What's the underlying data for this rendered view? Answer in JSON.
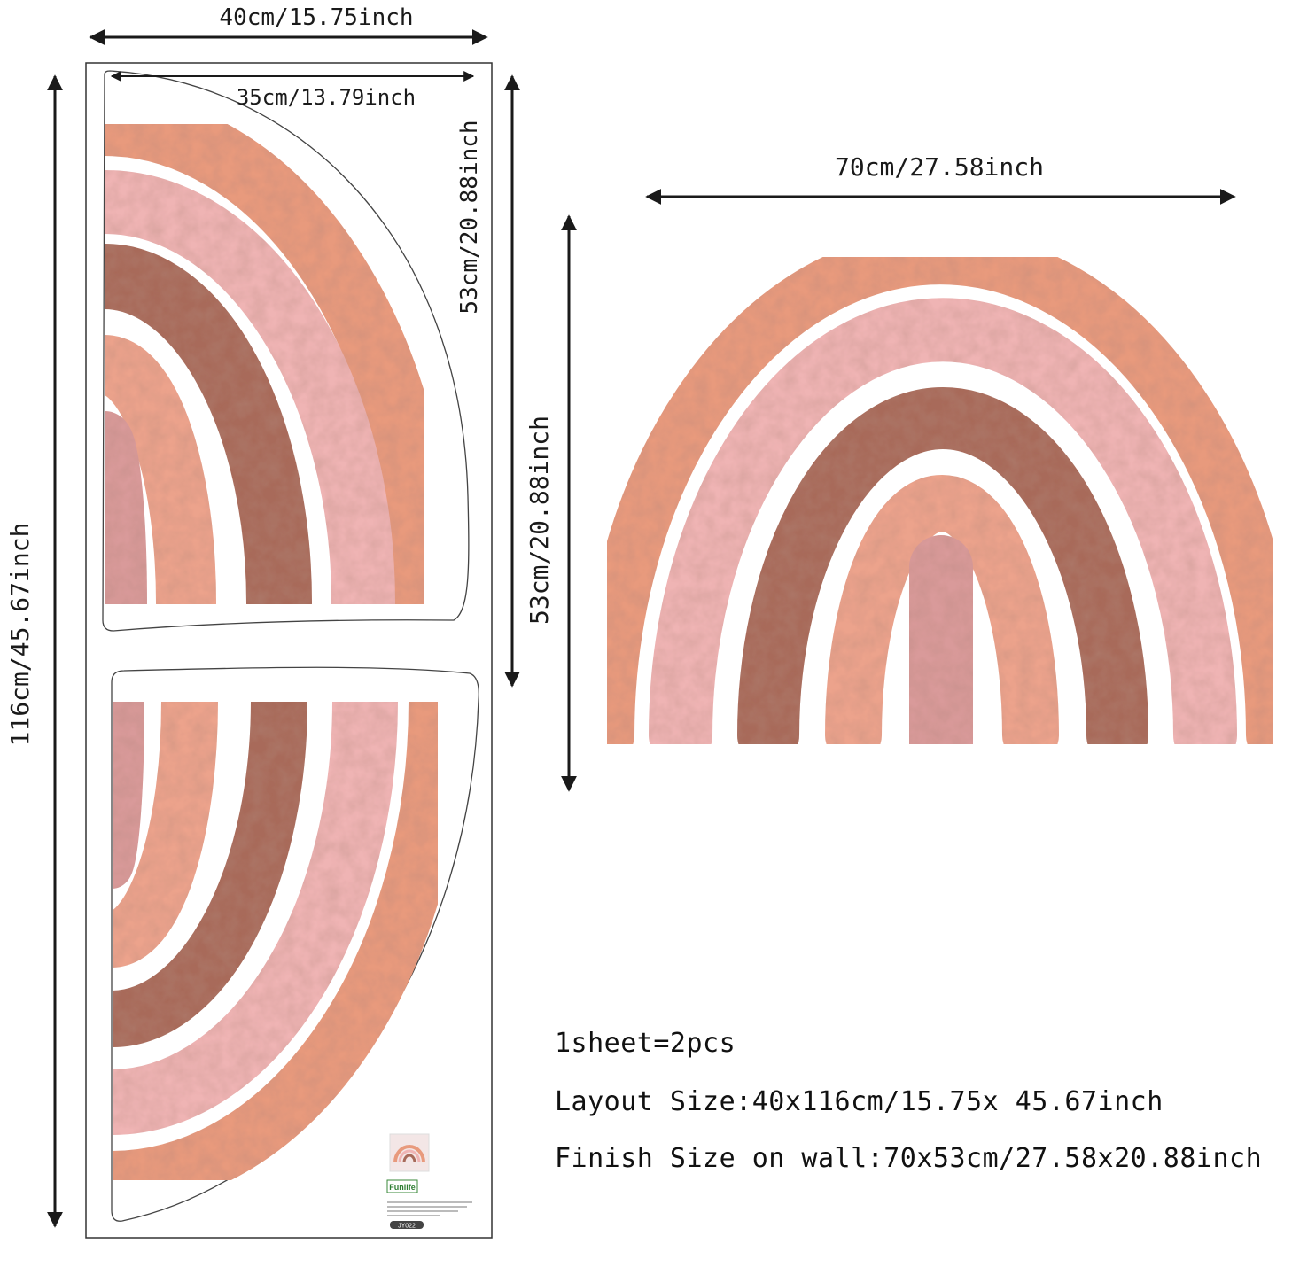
{
  "dimensions": {
    "sheet_width": "40cm/15.75inch",
    "sheet_height": "116cm/45.67inch",
    "piece_width": "35cm/13.79inch",
    "piece_height": "53cm/20.88inch",
    "finished_width": "70cm/27.58inch",
    "finished_height": "53cm/20.88inch"
  },
  "info": {
    "pieces": "1sheet=2pcs",
    "layout_size": "Layout Size:40x116cm/15.75x 45.67inch",
    "finish_size": "Finish Size on wall:70x53cm/27.58x20.88inch"
  },
  "label": {
    "brand": "Funlife",
    "code": "JY022"
  },
  "colors": {
    "coral": "#e89a7d",
    "light_pink": "#efb4b4",
    "brown": "#a86a5a",
    "peach": "#eca38c",
    "dusty_rose": "#d99a9a",
    "ink": "#1a1a1a"
  }
}
